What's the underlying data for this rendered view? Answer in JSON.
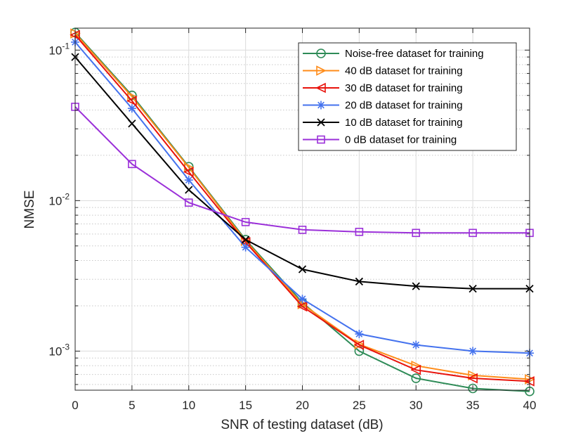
{
  "chart_data": {
    "type": "line",
    "title": "",
    "xlabel": "SNR of testing dataset (dB)",
    "ylabel": "NMSE",
    "x": [
      0,
      5,
      10,
      15,
      20,
      25,
      30,
      35,
      40
    ],
    "xlim": [
      0,
      40
    ],
    "ylim": [
      0.00055,
      0.14
    ],
    "yscale": "log",
    "grid": true,
    "legend_position": "top-right",
    "x_tick_labels": [
      "0",
      "5",
      "10",
      "15",
      "20",
      "25",
      "30",
      "35",
      "40"
    ],
    "y_ticks": [
      {
        "value": 0.001,
        "mantissa": "10",
        "exponent": "-3"
      },
      {
        "value": 0.01,
        "mantissa": "10",
        "exponent": "-2"
      },
      {
        "value": 0.1,
        "mantissa": "10",
        "exponent": "-1"
      }
    ],
    "series": [
      {
        "name": "Noise-free dataset for training",
        "color": "#2e8b57",
        "marker": "circle",
        "values": [
          0.131,
          0.05,
          0.0168,
          0.0055,
          0.0021,
          0.001,
          0.00066,
          0.000565,
          0.00054
        ]
      },
      {
        "name": "40 dB dataset for training",
        "color": "#ff8c1a",
        "marker": "triangle-right",
        "values": [
          0.129,
          0.049,
          0.0166,
          0.0054,
          0.00205,
          0.00111,
          0.0008,
          0.00069,
          0.00065
        ]
      },
      {
        "name": "30 dB dataset for training",
        "color": "#e8130c",
        "marker": "triangle-left",
        "values": [
          0.126,
          0.046,
          0.0155,
          0.0053,
          0.00198,
          0.0011,
          0.00075,
          0.00066,
          0.00063
        ]
      },
      {
        "name": "20 dB dataset for training",
        "color": "#4472ee",
        "marker": "asterisk",
        "values": [
          0.113,
          0.041,
          0.0137,
          0.0049,
          0.00222,
          0.0013,
          0.0011,
          0.001,
          0.00097
        ]
      },
      {
        "name": "10 dB dataset for training",
        "color": "#000000",
        "marker": "x",
        "values": [
          0.09,
          0.0325,
          0.0118,
          0.0055,
          0.0035,
          0.0029,
          0.0027,
          0.0026,
          0.0026
        ]
      },
      {
        "name": "0 dB dataset for training",
        "color": "#9b30d9",
        "marker": "square",
        "values": [
          0.042,
          0.0175,
          0.0097,
          0.0072,
          0.0064,
          0.0062,
          0.0061,
          0.0061,
          0.0061
        ]
      }
    ]
  }
}
